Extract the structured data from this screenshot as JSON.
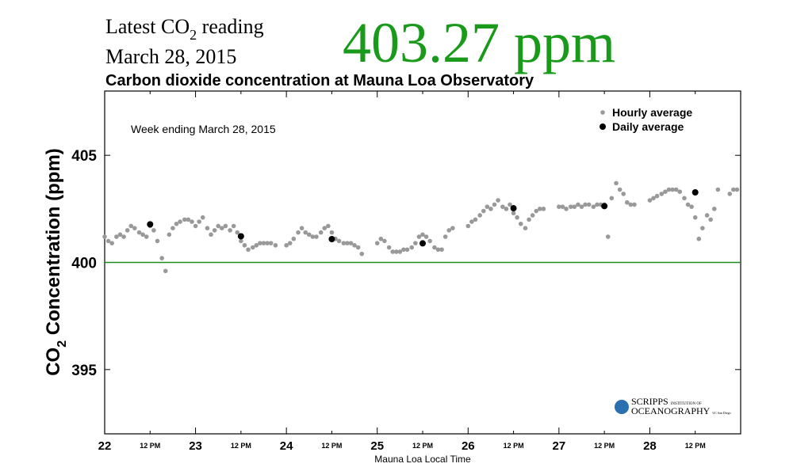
{
  "header": {
    "label_pre": "Latest CO",
    "label_sub": "2",
    "label_post": " reading",
    "date": "March 28, 2015",
    "reading": "403.27 ppm"
  },
  "chart_data": {
    "type": "scatter",
    "title": "Carbon dioxide concentration at Mauna Loa Observatory",
    "annotation": "Week ending March 28, 2015",
    "ylabel": [
      "CO",
      "2",
      " Concentration (ppm)"
    ],
    "xlabel": "Mauna Loa Local Time",
    "logo": [
      "SCRIPPS",
      "INSTITUTION OF",
      "OCEANOGRAPHY",
      "UC San Diego"
    ],
    "xlim": [
      22,
      29
    ],
    "ylim": [
      392,
      408
    ],
    "yticks": [
      395,
      400,
      405
    ],
    "xticks": [
      22,
      {
        "value": 22.5,
        "label": "12 PM"
      },
      23,
      {
        "value": 23.5,
        "label": "12 PM"
      },
      24,
      {
        "value": 24.5,
        "label": "12 PM"
      },
      25,
      {
        "value": 25.5,
        "label": "12 PM"
      },
      26,
      {
        "value": 26.5,
        "label": "12 PM"
      },
      27,
      {
        "value": 27.5,
        "label": "12 PM"
      },
      28,
      {
        "value": 28.5,
        "label": "12 PM"
      }
    ],
    "reference_line": {
      "value": 400,
      "color": "#1e8c1e"
    },
    "legend": "top-right",
    "series": [
      {
        "name": "Hourly average",
        "color": "#999999",
        "size": 2.8,
        "x": [
          22,
          22.04,
          22.08,
          22.13,
          22.17,
          22.21,
          22.25,
          22.29,
          22.33,
          22.38,
          22.42,
          22.46,
          22.5,
          22.54,
          22.58,
          22.63,
          22.67,
          22.71,
          22.75,
          22.79,
          22.83,
          22.88,
          22.92,
          22.96,
          23,
          23.04,
          23.08,
          23.13,
          23.17,
          23.21,
          23.25,
          23.29,
          23.33,
          23.38,
          23.42,
          23.46,
          23.5,
          23.54,
          23.58,
          23.63,
          23.67,
          23.71,
          23.75,
          23.79,
          23.83,
          23.88,
          24,
          24.04,
          24.08,
          24.13,
          24.17,
          24.21,
          24.25,
          24.29,
          24.33,
          24.38,
          24.42,
          24.46,
          24.5,
          24.54,
          24.58,
          24.63,
          24.67,
          24.71,
          24.75,
          24.79,
          24.83,
          25,
          25.04,
          25.08,
          25.13,
          25.17,
          25.21,
          25.25,
          25.29,
          25.33,
          25.38,
          25.42,
          25.46,
          25.5,
          25.54,
          25.58,
          25.63,
          25.67,
          25.71,
          25.75,
          25.79,
          25.83,
          26,
          26.04,
          26.08,
          26.13,
          26.17,
          26.21,
          26.25,
          26.29,
          26.33,
          26.38,
          26.42,
          26.46,
          26.5,
          26.54,
          26.58,
          26.63,
          26.67,
          26.71,
          26.75,
          26.79,
          26.83,
          27,
          27.04,
          27.08,
          27.13,
          27.17,
          27.21,
          27.25,
          27.29,
          27.33,
          27.38,
          27.42,
          27.46,
          27.5,
          27.54,
          27.58,
          27.63,
          27.67,
          27.71,
          27.75,
          27.79,
          27.83,
          28,
          28.04,
          28.08,
          28.13,
          28.17,
          28.21,
          28.25,
          28.29,
          28.33,
          28.38,
          28.42,
          28.46,
          28.5,
          28.54,
          28.58,
          28.63,
          28.67,
          28.71,
          28.75,
          28.88,
          28.92,
          28.96
        ],
        "values": [
          401.2,
          401.0,
          400.9,
          401.2,
          401.3,
          401.2,
          401.5,
          401.7,
          401.6,
          401.4,
          401.3,
          401.2,
          401.7,
          401.5,
          401.0,
          400.2,
          399.6,
          401.3,
          401.6,
          401.8,
          401.9,
          402.0,
          402.0,
          401.9,
          401.7,
          401.9,
          402.1,
          401.6,
          401.3,
          401.5,
          401.7,
          401.6,
          401.7,
          401.5,
          401.7,
          401.4,
          401.0,
          400.8,
          400.6,
          400.7,
          400.8,
          400.9,
          400.9,
          400.9,
          400.9,
          400.8,
          400.8,
          400.9,
          401.1,
          401.4,
          401.6,
          401.4,
          401.3,
          401.2,
          401.2,
          401.4,
          401.6,
          401.7,
          401.4,
          401.1,
          401.0,
          400.9,
          400.9,
          400.9,
          400.8,
          400.7,
          400.4,
          400.9,
          401.1,
          401.0,
          400.7,
          400.5,
          400.5,
          400.5,
          400.6,
          400.6,
          400.7,
          400.9,
          401.2,
          401.3,
          401.2,
          401.0,
          400.7,
          400.6,
          400.6,
          401.2,
          401.5,
          401.6,
          401.7,
          401.9,
          402.0,
          402.2,
          402.4,
          402.6,
          402.5,
          402.7,
          402.9,
          402.6,
          402.5,
          402.7,
          402.3,
          402.1,
          401.8,
          401.6,
          402.0,
          402.2,
          402.4,
          402.5,
          402.5,
          402.6,
          402.6,
          402.5,
          402.6,
          402.6,
          402.7,
          402.6,
          402.7,
          402.7,
          402.6,
          402.7,
          402.7,
          402.7,
          401.2,
          403.0,
          403.7,
          403.4,
          403.2,
          402.8,
          402.7,
          402.7,
          402.9,
          403.0,
          403.1,
          403.2,
          403.3,
          403.4,
          403.4,
          403.4,
          403.3,
          403.0,
          402.7,
          402.6,
          402.1,
          401.1,
          401.6,
          402.2,
          402.0,
          402.5,
          403.4,
          403.2,
          403.4,
          403.4
        ]
      },
      {
        "name": "Daily average",
        "color": "#000000",
        "size": 4,
        "x": [
          22.5,
          23.5,
          24.5,
          25.5,
          26.5,
          27.5,
          28.5
        ],
        "values": [
          401.78,
          401.22,
          401.09,
          400.89,
          402.53,
          402.63,
          403.27
        ]
      }
    ]
  }
}
